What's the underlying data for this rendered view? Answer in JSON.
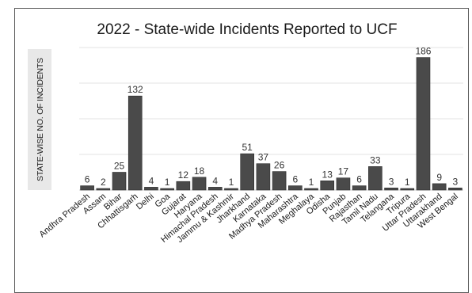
{
  "chart_data": {
    "type": "bar",
    "title": "2022 - State-wide Incidents Reported to UCF",
    "ylabel": "STATE-WISE NO. OF INCIDENTS",
    "xlabel": "",
    "ylim": [
      0,
      200
    ],
    "grid": true,
    "legend": "none",
    "colors": {
      "bar": "#4a4a4a",
      "bar_stroke": "#2a2a2a",
      "ylabel_box": "#e8e8e8",
      "grid": "#e3e3e3"
    },
    "categories": [
      "Andhra Pradesh",
      "Assam",
      "Bihar",
      "Chhattisgarh",
      "Delhi",
      "Goa",
      "Gujarat",
      "Haryana",
      "Himachal Pradesh",
      "Jammu & Kashmir",
      "Jharkhand",
      "Karnataka",
      "Madhya Pradesh",
      "Maharashtra",
      "Meghalaya",
      "Odisha",
      "Punjab",
      "Rajasthan",
      "Tamil Nadu",
      "Telangana",
      "Tripura",
      "Uttar Pradesh",
      "Uttarakhand",
      "West Bengal"
    ],
    "values": [
      6,
      2,
      25,
      132,
      4,
      1,
      12,
      18,
      4,
      1,
      51,
      37,
      26,
      6,
      1,
      13,
      17,
      6,
      33,
      3,
      1,
      186,
      9,
      3
    ]
  }
}
